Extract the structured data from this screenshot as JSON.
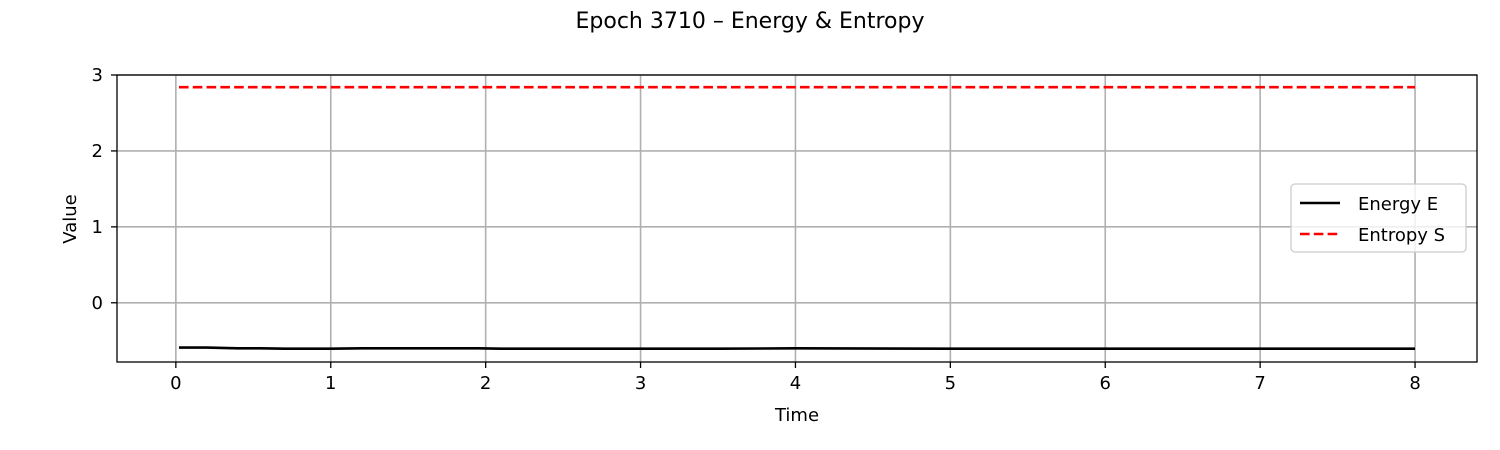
{
  "chart_data": {
    "type": "line",
    "title": "Epoch 3710 – Energy & Entropy",
    "xlabel": "Time",
    "ylabel": "Value",
    "xlim": [
      -0.38,
      8.4
    ],
    "ylim": [
      -0.78,
      3.0
    ],
    "xticks": [
      0,
      1,
      2,
      3,
      4,
      5,
      6,
      7,
      8
    ],
    "yticks": [
      0,
      1,
      2,
      3
    ],
    "grid": true,
    "legend_position": "center-right",
    "series": [
      {
        "name": "Energy E",
        "color": "#000000",
        "style": "solid",
        "x": [
          0.02,
          0.2,
          0.4,
          0.55,
          0.7,
          1.0,
          1.2,
          1.5,
          1.8,
          1.95,
          2.1,
          2.5,
          3.0,
          3.5,
          4.0,
          5.0,
          6.0,
          7.0,
          8.0
        ],
        "y": [
          -0.59,
          -0.59,
          -0.6,
          -0.6,
          -0.605,
          -0.605,
          -0.6,
          -0.6,
          -0.6,
          -0.6,
          -0.605,
          -0.605,
          -0.605,
          -0.605,
          -0.6,
          -0.605,
          -0.605,
          -0.605,
          -0.605
        ]
      },
      {
        "name": "Entropy S",
        "color": "#ff0000",
        "style": "dashed",
        "x": [
          0.02,
          8.0
        ],
        "y": [
          2.84,
          2.84
        ]
      }
    ]
  }
}
